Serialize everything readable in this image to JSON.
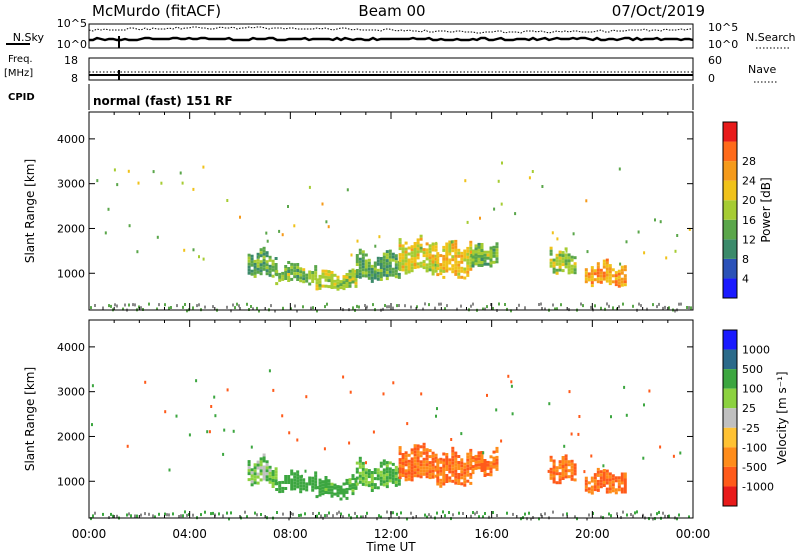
{
  "header": {
    "station": "McMurdo (fitACF)",
    "beam": "Beam 00",
    "date": "07/Oct/2019"
  },
  "panels": {
    "noise": {
      "left_label": "N.Sky",
      "right_label": "N.Search",
      "ticks": [
        "10^5",
        "10^0"
      ]
    },
    "freq": {
      "left_label_1": "Freq.",
      "left_label_2": "[MHz]",
      "left_ticks": [
        "18",
        "8"
      ],
      "right_label": "Nave",
      "right_ticks": [
        "60",
        "0"
      ]
    },
    "cpid": {
      "left_label": "CPID",
      "program": "normal (fast) 151 RF"
    }
  },
  "colors": {
    "power": [
      "#1a1aff",
      "#2b52b8",
      "#3b8a6a",
      "#5aa64a",
      "#a6cc33",
      "#f0c21a",
      "#f59a1a",
      "#ff6a1a",
      "#e81a1a"
    ],
    "velocity": [
      "#e81a1a",
      "#ff5a1a",
      "#ff8c1a",
      "#ffc233",
      "#c0c0c0",
      "#8cd240",
      "#3ca640",
      "#2b6a8a",
      "#1a1aff"
    ],
    "ground_scatter": "#888888"
  },
  "chart_data": [
    {
      "type": "heatmap",
      "name": "power",
      "ylabel": "Slant Range [km]",
      "xlabel": "",
      "y_ticks": [
        "1000",
        "2000",
        "3000",
        "4000"
      ],
      "ylim": [
        180,
        4600
      ],
      "xlim": [
        0,
        24
      ],
      "colorbar": {
        "label": "Power [dB]",
        "range": [
          0,
          32
        ],
        "ticks": [
          "4",
          "8",
          "12",
          "16",
          "20",
          "24",
          "28"
        ]
      },
      "echo_regions": [
        {
          "t_start": 6.3,
          "t_end": 7.4,
          "r_low": 900,
          "r_high": 1600,
          "value": 12
        },
        {
          "t_start": 7.4,
          "t_end": 9.0,
          "r_low": 750,
          "r_high": 1300,
          "value": 14
        },
        {
          "t_start": 9.0,
          "t_end": 10.6,
          "r_low": 600,
          "r_high": 1150,
          "value": 16
        },
        {
          "t_start": 10.6,
          "t_end": 12.3,
          "r_low": 800,
          "r_high": 1550,
          "value": 12
        },
        {
          "t_start": 12.3,
          "t_end": 13.8,
          "r_low": 1000,
          "r_high": 1900,
          "value": 18
        },
        {
          "t_start": 13.8,
          "t_end": 15.2,
          "r_low": 900,
          "r_high": 1800,
          "value": 20
        },
        {
          "t_start": 15.2,
          "t_end": 16.2,
          "r_low": 1100,
          "r_high": 1750,
          "value": 14
        },
        {
          "t_start": 18.3,
          "t_end": 19.3,
          "r_low": 950,
          "r_high": 1650,
          "value": 16
        },
        {
          "t_start": 19.7,
          "t_end": 21.3,
          "r_low": 700,
          "r_high": 1350,
          "value": 22
        }
      ]
    },
    {
      "type": "heatmap",
      "name": "velocity",
      "ylabel": "Slant Range [km]",
      "xlabel": "Time UT",
      "x_ticks": [
        "00:00",
        "04:00",
        "08:00",
        "12:00",
        "16:00",
        "20:00",
        "00:00"
      ],
      "y_ticks": [
        "1000",
        "2000",
        "3000",
        "4000"
      ],
      "ylim": [
        180,
        4600
      ],
      "xlim": [
        0,
        24
      ],
      "colorbar": {
        "label": "Velocity [m s⁻¹]",
        "ticks": [
          "1000",
          "500",
          "100",
          "25",
          "-25",
          "-100",
          "-500",
          "-1000"
        ]
      },
      "echo_regions": [
        {
          "t_start": 6.3,
          "t_end": 7.4,
          "r_low": 900,
          "r_high": 1600,
          "value": 100
        },
        {
          "t_start": 7.4,
          "t_end": 9.0,
          "r_low": 750,
          "r_high": 1300,
          "value": 300
        },
        {
          "t_start": 9.0,
          "t_end": 10.6,
          "r_low": 600,
          "r_high": 1150,
          "value": 200
        },
        {
          "t_start": 10.6,
          "t_end": 12.3,
          "r_low": 800,
          "r_high": 1550,
          "value": 150
        },
        {
          "t_start": 12.3,
          "t_end": 13.8,
          "r_low": 1000,
          "r_high": 1900,
          "value": -300
        },
        {
          "t_start": 13.8,
          "t_end": 15.2,
          "r_low": 900,
          "r_high": 1800,
          "value": -300
        },
        {
          "t_start": 15.2,
          "t_end": 16.2,
          "r_low": 1100,
          "r_high": 1750,
          "value": -300
        },
        {
          "t_start": 18.3,
          "t_end": 19.3,
          "r_low": 950,
          "r_high": 1650,
          "value": -300
        },
        {
          "t_start": 19.7,
          "t_end": 21.3,
          "r_low": 700,
          "r_high": 1350,
          "value": -300
        }
      ]
    }
  ]
}
